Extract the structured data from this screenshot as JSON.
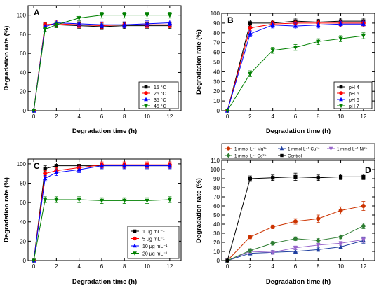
{
  "chart_data": [
    {
      "panel_label": "A",
      "type": "line",
      "xlabel": "Degradation time (h)",
      "ylabel": "Degradation rate (%)",
      "xlim": [
        -0.5,
        13
      ],
      "ylim": [
        0,
        110
      ],
      "xticks": [
        0,
        2,
        4,
        6,
        8,
        10,
        12
      ],
      "yticks": [
        0,
        20,
        40,
        60,
        80,
        100
      ],
      "legend_position": "bottom-right",
      "series": [
        {
          "name": "15 °C",
          "color": "#000000",
          "marker": "square",
          "x": [
            0,
            1,
            2,
            4,
            6,
            8,
            10,
            12
          ],
          "y": [
            0,
            90,
            90,
            89,
            88,
            89,
            89,
            89
          ],
          "err": [
            0,
            2,
            3,
            3,
            3,
            3,
            3,
            3
          ]
        },
        {
          "name": "25 °C",
          "color": "#ff0000",
          "marker": "circle",
          "x": [
            0,
            1,
            2,
            4,
            6,
            8,
            10,
            12
          ],
          "y": [
            0,
            90,
            91,
            90,
            89,
            90,
            90,
            90
          ],
          "err": [
            0,
            2,
            3,
            3,
            3,
            3,
            3,
            3
          ]
        },
        {
          "name": "35 °C",
          "color": "#0000ff",
          "marker": "triangle-up",
          "x": [
            0,
            1,
            2,
            4,
            6,
            8,
            10,
            12
          ],
          "y": [
            0,
            88,
            92,
            91,
            90,
            90,
            91,
            92
          ],
          "err": [
            0,
            2,
            3,
            3,
            3,
            3,
            3,
            3
          ]
        },
        {
          "name": "45 °C",
          "color": "#008000",
          "marker": "triangle-down",
          "x": [
            0,
            1,
            2,
            4,
            6,
            8,
            10,
            12
          ],
          "y": [
            0,
            85,
            90,
            97,
            100,
            100,
            100,
            100
          ],
          "err": [
            0,
            2,
            3,
            3,
            3,
            3,
            3,
            3
          ]
        }
      ]
    },
    {
      "panel_label": "B",
      "type": "line",
      "xlabel": "Degradation time (h)",
      "ylabel": "Degradation rate (%)",
      "xlim": [
        -0.5,
        13
      ],
      "ylim": [
        0,
        100
      ],
      "xticks": [
        0,
        2,
        4,
        6,
        8,
        10,
        12
      ],
      "yticks": [
        0,
        10,
        20,
        30,
        40,
        50,
        60,
        70,
        80,
        90,
        100
      ],
      "legend_position": "bottom-right",
      "series": [
        {
          "name": "pH 4",
          "color": "#000000",
          "marker": "square",
          "x": [
            0,
            2,
            4,
            6,
            8,
            10,
            12
          ],
          "y": [
            0,
            90,
            90,
            92,
            91,
            92,
            92
          ],
          "err": [
            0,
            3,
            3,
            3,
            3,
            3,
            3
          ]
        },
        {
          "name": "pH 5",
          "color": "#ff0000",
          "marker": "circle",
          "x": [
            0,
            2,
            4,
            6,
            8,
            10,
            12
          ],
          "y": [
            0,
            85,
            89,
            90,
            90,
            90,
            90
          ],
          "err": [
            0,
            3,
            3,
            3,
            3,
            3,
            3
          ]
        },
        {
          "name": "pH 6",
          "color": "#0000ff",
          "marker": "triangle-up",
          "x": [
            0,
            2,
            4,
            6,
            8,
            10,
            12
          ],
          "y": [
            0,
            79,
            88,
            87,
            88,
            89,
            89
          ],
          "err": [
            0,
            3,
            3,
            3,
            3,
            3,
            3
          ]
        },
        {
          "name": "pH 7",
          "color": "#008000",
          "marker": "triangle-down",
          "x": [
            0,
            2,
            4,
            6,
            8,
            10,
            12
          ],
          "y": [
            0,
            38,
            62,
            65,
            71,
            74,
            77
          ],
          "err": [
            0,
            3,
            3,
            3,
            3,
            3,
            3
          ]
        }
      ]
    },
    {
      "panel_label": "C",
      "type": "line",
      "xlabel": "Degradation time (h)",
      "ylabel": "Degradation rate (%)",
      "xlim": [
        -0.5,
        13
      ],
      "ylim": [
        0,
        105
      ],
      "xticks": [
        0,
        2,
        4,
        6,
        8,
        10,
        12
      ],
      "yticks": [
        0,
        20,
        40,
        60,
        80,
        100
      ],
      "legend_position": "bottom-right",
      "series": [
        {
          "name": "1 μg mL⁻¹",
          "color": "#000000",
          "marker": "square",
          "x": [
            0,
            1,
            2,
            4,
            6,
            8,
            10,
            12
          ],
          "y": [
            0,
            95,
            98,
            98,
            98,
            98,
            98,
            98
          ],
          "err": [
            0,
            3,
            3,
            3,
            3,
            3,
            3,
            3
          ]
        },
        {
          "name": "5 μg mL⁻¹",
          "color": "#ff0000",
          "marker": "circle",
          "x": [
            0,
            1,
            2,
            4,
            6,
            8,
            10,
            12
          ],
          "y": [
            0,
            90,
            93,
            96,
            99,
            99,
            99,
            99
          ],
          "err": [
            0,
            3,
            3,
            3,
            3,
            3,
            3,
            3
          ]
        },
        {
          "name": "10 μg mL⁻¹",
          "color": "#0000ff",
          "marker": "triangle-up",
          "x": [
            0,
            1,
            2,
            4,
            6,
            8,
            10,
            12
          ],
          "y": [
            0,
            85,
            91,
            94,
            98,
            98,
            98,
            98
          ],
          "err": [
            0,
            3,
            3,
            3,
            3,
            3,
            3,
            3
          ]
        },
        {
          "name": "20 μg mL⁻¹",
          "color": "#008000",
          "marker": "triangle-down",
          "x": [
            0,
            1,
            2,
            4,
            6,
            8,
            10,
            12
          ],
          "y": [
            0,
            63,
            63,
            63,
            62,
            62,
            62,
            63
          ],
          "err": [
            0,
            3,
            3,
            3,
            3,
            3,
            3,
            3
          ]
        }
      ]
    },
    {
      "panel_label": "D",
      "type": "line",
      "xlabel": "Degradation time (h)",
      "ylabel": "Degradation rate (%)",
      "xlim": [
        -0.5,
        13
      ],
      "ylim": [
        0,
        110
      ],
      "xticks": [
        0,
        2,
        4,
        6,
        8,
        10,
        12
      ],
      "yticks": [
        0,
        10,
        20,
        30,
        40,
        50,
        60,
        70,
        80,
        90,
        100,
        110
      ],
      "legend_position": "top",
      "series": [
        {
          "name": "1 mmol L⁻¹ Mg²⁺",
          "color": "#cc3300",
          "marker": "circle",
          "x": [
            0,
            2,
            4,
            6,
            8,
            10,
            12
          ],
          "y": [
            0,
            26,
            37,
            43,
            46,
            55,
            60
          ],
          "err": [
            0,
            2,
            2,
            3,
            4,
            4,
            5
          ]
        },
        {
          "name": "1 mmol L⁻¹ Cu²⁺",
          "color": "#1f3f9f",
          "marker": "triangle-up",
          "x": [
            0,
            2,
            4,
            6,
            8,
            10,
            12
          ],
          "y": [
            0,
            8,
            9,
            10,
            12,
            15,
            22
          ],
          "err": [
            0,
            2,
            2,
            2,
            2,
            2,
            3
          ]
        },
        {
          "name": "1 mmol L⁻¹ Ni²⁺",
          "color": "#9966cc",
          "marker": "triangle-down",
          "x": [
            0,
            2,
            4,
            6,
            8,
            10,
            12
          ],
          "y": [
            0,
            10,
            9,
            14,
            17,
            19,
            23
          ],
          "err": [
            0,
            2,
            2,
            2,
            2,
            2,
            3
          ]
        },
        {
          "name": "1 mmol L⁻¹ Co²⁺",
          "color": "#2e7d32",
          "marker": "diamond",
          "x": [
            0,
            2,
            4,
            6,
            8,
            10,
            12
          ],
          "y": [
            0,
            11,
            19,
            24,
            22,
            26,
            38
          ],
          "err": [
            0,
            2,
            2,
            2,
            2,
            2,
            3
          ]
        },
        {
          "name": "Control",
          "color": "#000000",
          "marker": "square",
          "x": [
            0,
            2,
            4,
            6,
            8,
            10,
            12
          ],
          "y": [
            0,
            90,
            91,
            92,
            91,
            92,
            92
          ],
          "err": [
            0,
            3,
            3,
            4,
            3,
            3,
            3
          ]
        }
      ]
    }
  ]
}
